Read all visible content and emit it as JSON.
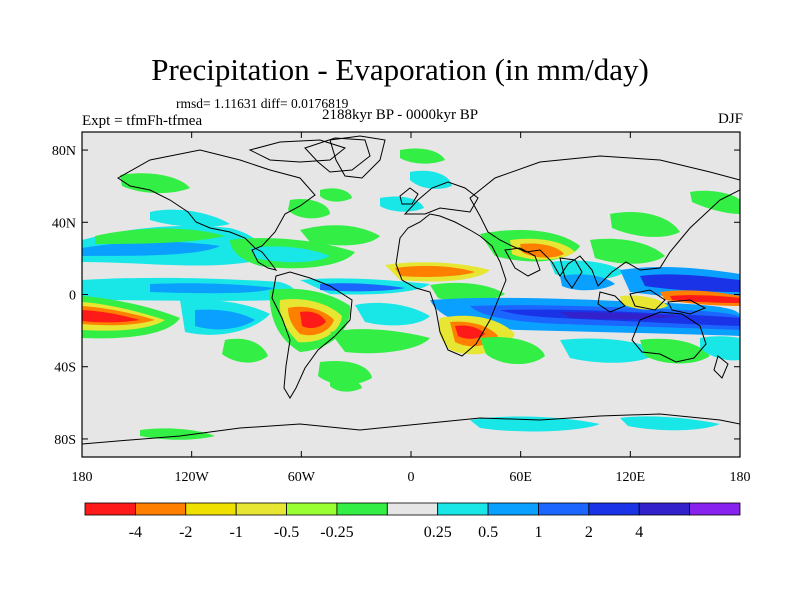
{
  "figure": {
    "title": "Precipitation - Evaporation (in mm/day)",
    "stats": "rmsd= 1.11631 diff= 0.0176819",
    "subtitle": "2188kyr BP - 0000kyr BP",
    "experiment": "Expt = tfmFh-tfmea",
    "season": "DJF"
  },
  "axes": {
    "lat_labels": [
      "80N",
      "40N",
      "0",
      "40S",
      "80S"
    ],
    "lat_values": [
      80,
      40,
      0,
      -40,
      -80
    ],
    "lon_labels": [
      "180",
      "120W",
      "60W",
      "0",
      "60E",
      "120E",
      "180"
    ],
    "lon_values": [
      -180,
      -120,
      -60,
      0,
      60,
      120,
      180
    ]
  },
  "colorbar": {
    "colors": [
      "#ff1a1a",
      "#ff8000",
      "#f0e000",
      "#e6e633",
      "#99ff33",
      "#33ee44",
      "#e6e6e6",
      "#19e6e6",
      "#0aa0ff",
      "#1a66ff",
      "#1a33e6",
      "#3322cc",
      "#8822ee"
    ],
    "labels": [
      "-4",
      "-2",
      "-1",
      "-0.5",
      "-0.25",
      "0.25",
      "0.5",
      "1",
      "2",
      "4"
    ]
  }
}
